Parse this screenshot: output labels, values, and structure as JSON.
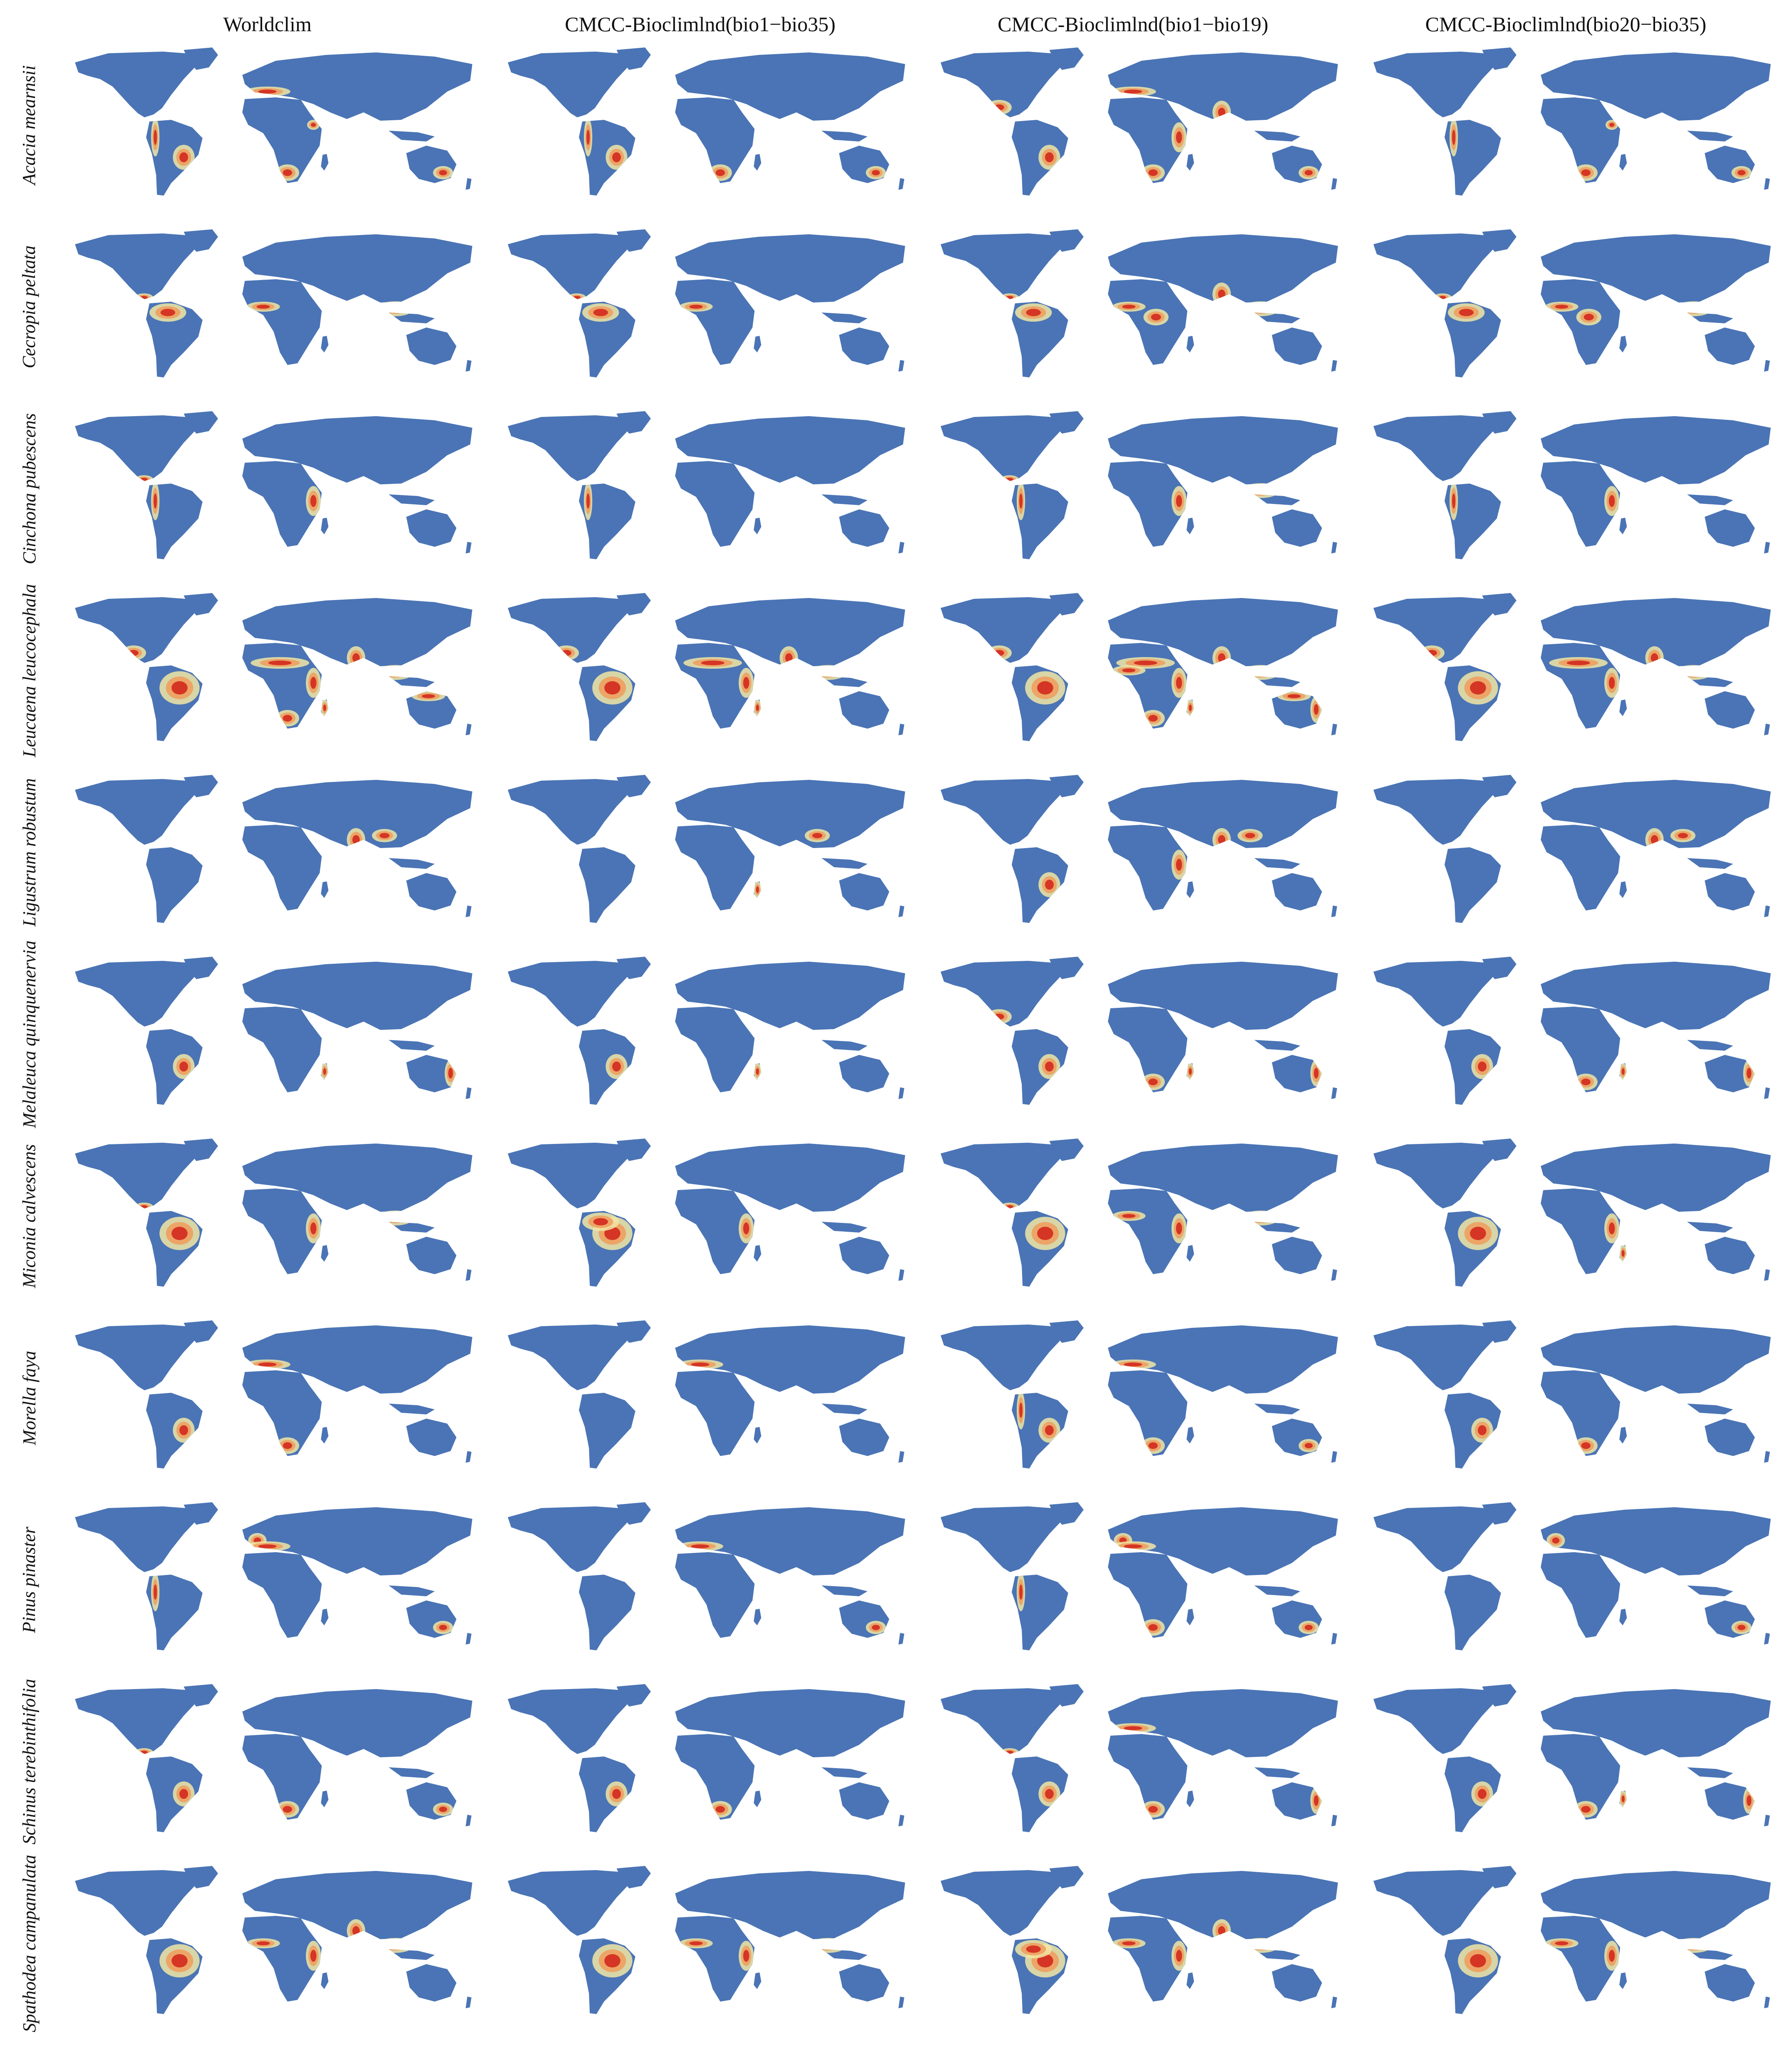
{
  "figure": {
    "columns": [
      {
        "label": "Worldclim"
      },
      {
        "label": "CMCC-Bioclimlnd(bio1−bio35)"
      },
      {
        "label": "CMCC-Bioclimlnd(bio1−bio19)"
      },
      {
        "label": "CMCC-Bioclimlnd(bio20−bio35)"
      }
    ],
    "rows": [
      {
        "species": "Acacia mearnsii",
        "maps": [
          [
            "mediterranean",
            "southafrica",
            "southeastaustralia",
            "southbrazil",
            "andes",
            "ethiopia"
          ],
          [
            "southeastaustralia",
            "andes",
            "southbrazil",
            "southafrica"
          ],
          [
            "mediterranean",
            "southafrica",
            "southeastaustralia",
            "southbrazil",
            "eastafrica",
            "india",
            "mexico"
          ],
          [
            "southeastaustralia",
            "southafrica",
            "andes",
            "ethiopia"
          ]
        ]
      },
      {
        "species": "Cecropia peltata",
        "maps": [
          [
            "amazon",
            "centralamerica",
            "westafrica",
            "seasia"
          ],
          [
            "amazon",
            "centralamerica",
            "westafrica"
          ],
          [
            "amazon",
            "centralamerica",
            "westafrica",
            "congo",
            "seasia",
            "india"
          ],
          [
            "amazon",
            "centralamerica",
            "westafrica",
            "congo",
            "seasia"
          ]
        ]
      },
      {
        "species": "Cinchona pubescens",
        "maps": [
          [
            "andes",
            "centralamerica",
            "eastafrica"
          ],
          [
            "andes"
          ],
          [
            "andes",
            "centralamerica",
            "eastafrica",
            "seasia"
          ],
          [
            "andes",
            "eastafrica"
          ]
        ]
      },
      {
        "species": "Leucaena leucocephala",
        "maps": [
          [
            "mexico",
            "brazil",
            "sahel",
            "eastafrica",
            "southafrica",
            "india",
            "seasia",
            "northaustralia",
            "madagascar"
          ],
          [
            "mexico",
            "brazil",
            "sahel",
            "eastafrica",
            "india",
            "seasia",
            "madagascar"
          ],
          [
            "mexico",
            "brazil",
            "sahel",
            "westafrica",
            "eastafrica",
            "southafrica",
            "india",
            "seasia",
            "northaustralia",
            "eastaustralia",
            "madagascar"
          ],
          [
            "mexico",
            "brazil",
            "sahel",
            "eastafrica",
            "india",
            "seasia"
          ]
        ]
      },
      {
        "species": "Ligustrum robustum",
        "maps": [
          [
            "southchina",
            "india"
          ],
          [
            "southchina",
            "madagascar"
          ],
          [
            "southchina",
            "india",
            "southbrazil",
            "eastafrica"
          ],
          [
            "southchina",
            "india"
          ]
        ]
      },
      {
        "species": "Melaleuca quinquenervia",
        "maps": [
          [
            "southbrazil",
            "eastaustralia",
            "madagascar"
          ],
          [
            "southbrazil",
            "madagascar"
          ],
          [
            "southbrazil",
            "eastaustralia",
            "madagascar",
            "mexico",
            "southafrica"
          ],
          [
            "southbrazil",
            "eastaustralia",
            "madagascar",
            "southafrica"
          ]
        ]
      },
      {
        "species": "Miconia calvescens",
        "maps": [
          [
            "brazil",
            "centralamerica",
            "eastafrica",
            "seasia"
          ],
          [
            "brazil",
            "amazon",
            "eastafrica"
          ],
          [
            "brazil",
            "centralamerica",
            "westafrica",
            "eastafrica",
            "seasia"
          ],
          [
            "brazil",
            "eastafrica",
            "madagascar"
          ]
        ]
      },
      {
        "species": "Morella faya",
        "maps": [
          [
            "mediterranean",
            "southbrazil",
            "southafrica"
          ],
          [
            "mediterranean"
          ],
          [
            "mediterranean",
            "southbrazil",
            "andes",
            "southafrica",
            "southeastaustralia"
          ],
          [
            "southbrazil",
            "southafrica"
          ]
        ]
      },
      {
        "species": "Pinus pinaster",
        "maps": [
          [
            "westeurope",
            "mediterranean",
            "southeastaustralia",
            "andes"
          ],
          [
            "mediterranean",
            "southeastaustralia"
          ],
          [
            "westeurope",
            "mediterranean",
            "southeastaustralia",
            "andes",
            "southafrica"
          ],
          [
            "westeurope",
            "southeastaustralia"
          ]
        ]
      },
      {
        "species": "Schinus terebinthifolia",
        "maps": [
          [
            "southbrazil",
            "southafrica",
            "centralamerica",
            "southeastaustralia"
          ],
          [
            "southbrazil",
            "southafrica"
          ],
          [
            "southbrazil",
            "southafrica",
            "mediterranean",
            "centralamerica",
            "eastaustralia"
          ],
          [
            "southbrazil",
            "southafrica",
            "madagascar",
            "eastaustralia"
          ]
        ]
      },
      {
        "species": "Spathodea campanulata",
        "maps": [
          [
            "brazil",
            "westafrica",
            "eastafrica",
            "india",
            "seasia"
          ],
          [
            "brazil",
            "westafrica",
            "eastafrica",
            "seasia"
          ],
          [
            "brazil",
            "amazon",
            "westafrica",
            "eastafrica",
            "india",
            "seasia"
          ],
          [
            "brazil",
            "westafrica",
            "eastafrica",
            "seasia"
          ]
        ]
      }
    ],
    "colors": {
      "land": "#4a74b5",
      "low": "#f1e6a4",
      "mid": "#eea060",
      "high": "#d42e22",
      "background": "#ffffff"
    }
  }
}
